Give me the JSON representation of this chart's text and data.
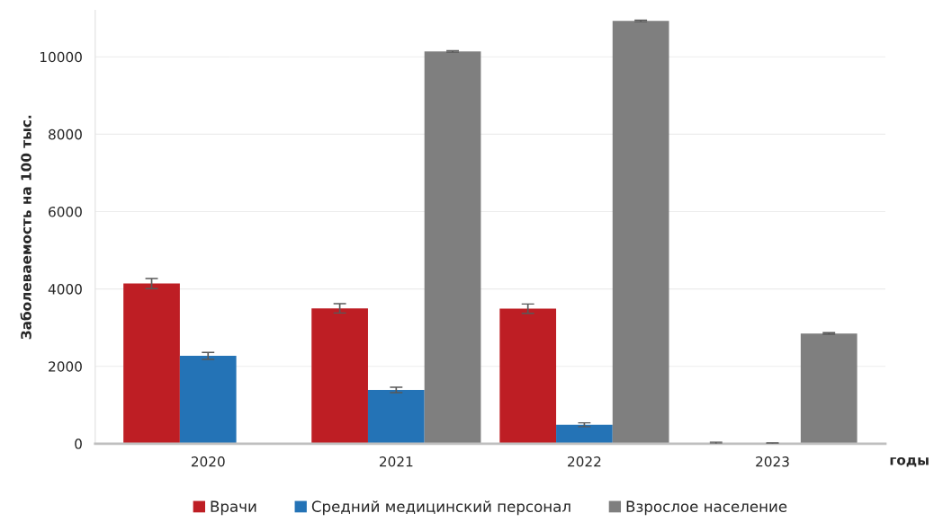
{
  "chart_data": {
    "type": "bar",
    "ylabel": "Заболеваемость на 100 тыс.",
    "xlabel": "годы",
    "categories": [
      "2020",
      "2021",
      "2022",
      "2023"
    ],
    "series": [
      {
        "name": "Врачи",
        "color": "#be1e24",
        "values": [
          4140,
          3500,
          3490,
          20
        ],
        "errors": [
          130,
          120,
          120,
          20
        ]
      },
      {
        "name": "Средний медицинский персонал",
        "color": "#2473b6",
        "values": [
          2270,
          1390,
          490,
          10
        ],
        "errors": [
          90,
          70,
          50,
          10
        ]
      },
      {
        "name": "Взрослое население",
        "color": "#7f7f7f",
        "values": [
          null,
          10140,
          10930,
          2850
        ],
        "errors": [
          null,
          20,
          20,
          20
        ]
      }
    ],
    "ylim": [
      0,
      11200
    ],
    "yticks": [
      0,
      2000,
      4000,
      6000,
      8000,
      10000
    ],
    "grid": "y",
    "legend": "bottom"
  }
}
